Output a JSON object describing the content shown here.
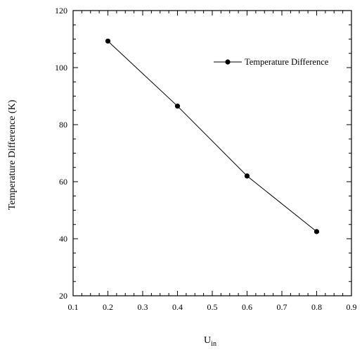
{
  "chart_data": {
    "type": "line",
    "title": "",
    "xlabel": "U",
    "xlabel_subscript": "in",
    "ylabel": "Temperature Difference (K)",
    "xlim": [
      0.1,
      0.9
    ],
    "ylim": [
      20,
      120
    ],
    "x_ticks": [
      0.1,
      0.2,
      0.3,
      0.4,
      0.5,
      0.6,
      0.7,
      0.8,
      0.9
    ],
    "x_tick_labels": [
      "0.1",
      "0.2",
      "0.3",
      "0.4",
      "0.5",
      "0.6",
      "0.7",
      "0.8",
      "0.9"
    ],
    "y_ticks": [
      20,
      40,
      60,
      80,
      100,
      120
    ],
    "y_tick_labels": [
      "20",
      "40",
      "60",
      "80",
      "100",
      "120"
    ],
    "grid": false,
    "legend_position": "top-right",
    "series": [
      {
        "name": "Temperature Difference",
        "color": "#000000",
        "marker": "circle",
        "x": [
          0.2,
          0.4,
          0.6,
          0.8
        ],
        "y": [
          109.3,
          86.5,
          62.0,
          42.5
        ]
      }
    ]
  }
}
